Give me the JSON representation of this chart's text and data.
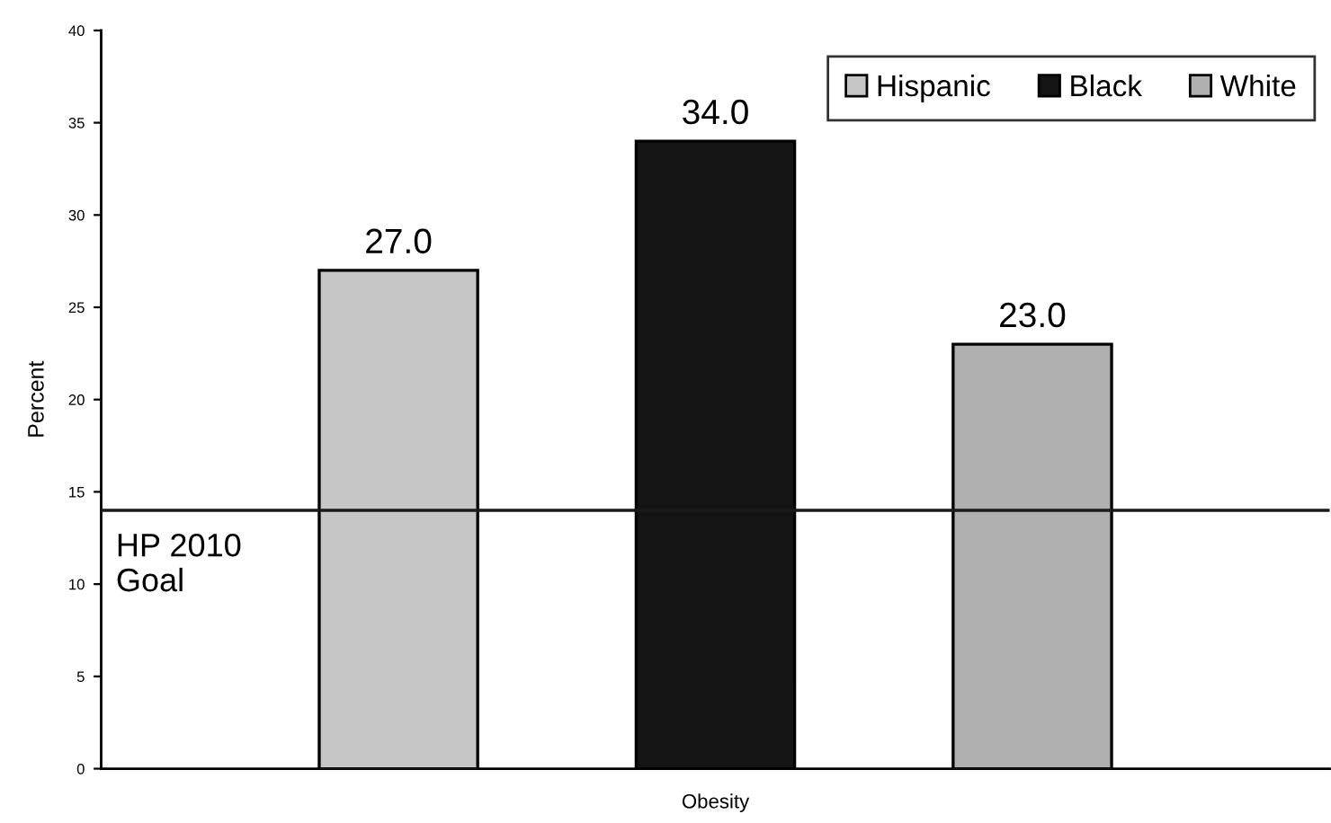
{
  "chart_data": {
    "type": "bar",
    "ylabel": "Percent",
    "categories": [
      "Obesity"
    ],
    "series": [
      {
        "name": "Hispanic",
        "color": "#c6c6c6",
        "values": [
          27
        ],
        "value_labels": [
          "27.0"
        ]
      },
      {
        "name": "Black",
        "color": "#141414",
        "values": [
          34
        ],
        "value_labels": [
          "34.0"
        ]
      },
      {
        "name": "White",
        "color": "#b0b0b0",
        "values": [
          23
        ],
        "value_labels": [
          "23.0"
        ]
      }
    ],
    "ylim": [
      0,
      40
    ],
    "yticks": [
      0,
      5,
      10,
      15,
      20,
      25,
      30,
      35,
      40
    ],
    "ref_lines": [
      {
        "axis": "y",
        "value": 14,
        "label": "HP 2010\nGoal",
        "color": "#1a1a1a"
      }
    ],
    "legend": "top right"
  }
}
